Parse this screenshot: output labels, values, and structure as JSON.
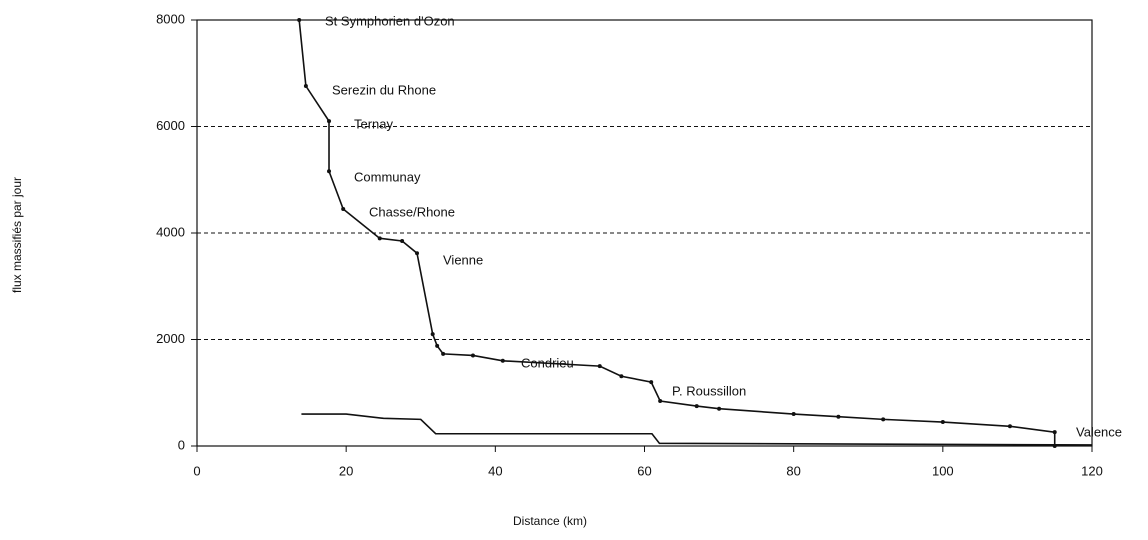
{
  "chart_data": {
    "type": "line",
    "x_label": "Distance (km)",
    "y_label": "flux massifiés par jour",
    "xlim": [
      0,
      120
    ],
    "xticks": [
      0,
      20,
      40,
      60,
      80,
      100,
      120
    ],
    "ylim": [
      0,
      8000
    ],
    "yticks": [
      0,
      2000,
      4000,
      6000,
      8000
    ],
    "grid": true,
    "series": [
      {
        "color": "#111111",
        "markers": true,
        "x": [
          13.7,
          14.6,
          17.7,
          17.7,
          19.6,
          24.5,
          27.5,
          29.5,
          31.6,
          32.2,
          33,
          37,
          41,
          54,
          56.9,
          60.9,
          62.1,
          67,
          70,
          80,
          86,
          92,
          100,
          109,
          115,
          115
        ],
        "values": [
          8000,
          6760,
          6100,
          5160,
          4450,
          3900,
          3850,
          3620,
          2100,
          1880,
          1730,
          1700,
          1600,
          1500,
          1310,
          1200,
          845,
          750,
          700,
          600,
          550,
          500,
          450,
          370,
          260,
          0
        ]
      },
      {
        "color": "#111111",
        "markers": false,
        "x": [
          14,
          20,
          25,
          30,
          32,
          61,
          62,
          120
        ],
        "values": [
          600,
          600,
          520,
          500,
          230,
          230,
          50,
          20
        ]
      }
    ],
    "annotations": [
      "St Symphorien d'Ozon",
      "Serezin du Rhone",
      "Ternay",
      "Communay",
      "Chasse/Rhone",
      "Vienne",
      "Condrieu",
      "P. Roussillon",
      "Valence"
    ]
  }
}
